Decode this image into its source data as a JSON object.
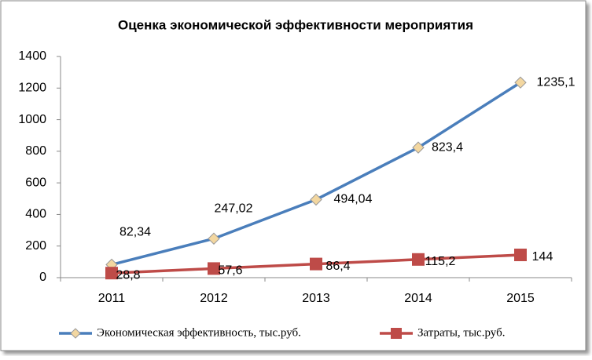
{
  "chart_data": {
    "type": "line",
    "title": "Оценка экономической эффективности мероприятия",
    "categories": [
      "2011",
      "2012",
      "2013",
      "2014",
      "2015"
    ],
    "series": [
      {
        "name": "Экономическая эффективность, тыс.руб.",
        "color": "#4a7ebb",
        "marker": "diamond",
        "values": [
          82.34,
          247.02,
          494.04,
          823.4,
          1235.1
        ],
        "value_labels": [
          "82,34",
          "247,02",
          "494,04",
          "823,4",
          "1235,1"
        ]
      },
      {
        "name": "Затраты, тыс.руб.",
        "color": "#be4b48",
        "marker": "square",
        "values": [
          28.8,
          57.6,
          86.4,
          115.2,
          144
        ],
        "value_labels": [
          "28,8",
          "57,6",
          "86,4",
          "115,2",
          "144"
        ]
      }
    ],
    "ylim": [
      0,
      1400
    ],
    "yticks": [
      0,
      200,
      400,
      600,
      800,
      1000,
      1200,
      1400
    ],
    "grid": false,
    "legend": "bottom"
  }
}
